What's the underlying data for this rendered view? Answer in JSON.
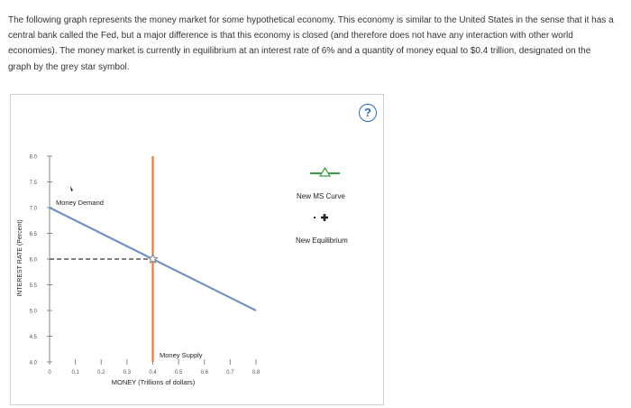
{
  "question": {
    "text": "The following graph represents the money market for some hypothetical economy. This economy is similar to the United States in the sense that it has a central bank called the Fed, but a major difference is that this economy is closed (and therefore does not have any interaction with other world economies). The money market is currently in equilibrium at an interest rate of 6% and a quantity of money equal to $0.4 trillion, designated on the graph by the grey star symbol."
  },
  "help": {
    "label": "?"
  },
  "legend": {
    "ms_curve_label": "New MS Curve",
    "equilibrium_label": "New Equilibrium",
    "ms_curve_color": "#3aa14a",
    "equilibrium_color": "#222222"
  },
  "chart_data": {
    "type": "line",
    "xlabel": "MONEY (Trillions of dollars)",
    "ylabel": "INTEREST RATE (Percent)",
    "xlim": [
      0,
      0.8
    ],
    "ylim": [
      4.0,
      8.0
    ],
    "x_ticks": [
      "0",
      "0.1",
      "0.2",
      "0.3",
      "0.4",
      "0.5",
      "0.6",
      "0.7",
      "0.8"
    ],
    "y_ticks": [
      "4.0",
      "4.5",
      "5.0",
      "5.5",
      "6.0",
      "6.5",
      "7.0",
      "7.5",
      "8.0"
    ],
    "series": [
      {
        "name": "Money Demand",
        "color": "#6f93c4",
        "x": [
          0,
          0.8
        ],
        "y": [
          7.0,
          5.0
        ]
      },
      {
        "name": "Money Supply",
        "color": "#f47a2c",
        "x": [
          0.4,
          0.4
        ],
        "y": [
          4.0,
          8.0
        ]
      }
    ],
    "equilibrium": {
      "x": 0.4,
      "y": 6.0,
      "color": "#8a8a8a"
    },
    "reference_lines_color": "#555555"
  }
}
